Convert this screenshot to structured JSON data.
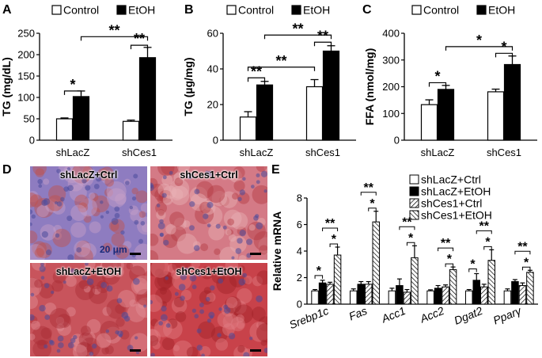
{
  "figure": {
    "letters": [
      "A",
      "B",
      "C",
      "D",
      "E"
    ]
  },
  "chart_data": [
    {
      "panel": "A",
      "type": "bar",
      "categories": [
        "shLacZ",
        "shCes1"
      ],
      "series": [
        {
          "name": "Control",
          "values": [
            50,
            44
          ],
          "errors": [
            2,
            3
          ]
        },
        {
          "name": "EtOH",
          "values": [
            102,
            193
          ],
          "errors": [
            13,
            24
          ]
        }
      ],
      "ylabel": "TG (mg/dL)",
      "ylim": [
        0,
        250
      ],
      "yticks": [
        0,
        50,
        100,
        150,
        200,
        250
      ],
      "legend": "top",
      "significance": [
        {
          "label": "*",
          "between": "shLacZ Control vs shLacZ EtOH"
        },
        {
          "label": "**",
          "between": "shCes1 Control vs shCes1 EtOH"
        },
        {
          "label": "**",
          "between": "shLacZ EtOH vs shCes1 EtOH"
        }
      ]
    },
    {
      "panel": "B",
      "type": "bar",
      "categories": [
        "shLacZ",
        "shCes1"
      ],
      "series": [
        {
          "name": "Control",
          "values": [
            13,
            30
          ],
          "errors": [
            3,
            4
          ]
        },
        {
          "name": "EtOH",
          "values": [
            31,
            50
          ],
          "errors": [
            2,
            3
          ]
        }
      ],
      "ylabel": "TG (µg/mg)",
      "ylim": [
        0,
        60
      ],
      "yticks": [
        0,
        20,
        40,
        60
      ],
      "legend": "top",
      "significance": [
        {
          "label": "**",
          "between": "shLacZ Control vs shLacZ EtOH"
        },
        {
          "label": "**",
          "between": "shCes1 Control vs shCes1 EtOH"
        },
        {
          "label": "**",
          "between": "shLacZ Control vs shCes1 Control"
        },
        {
          "label": "**",
          "between": "shLacZ EtOH vs shCes1 EtOH"
        }
      ]
    },
    {
      "panel": "C",
      "type": "bar",
      "categories": [
        "shLacZ",
        "shCes1"
      ],
      "series": [
        {
          "name": "Control",
          "values": [
            133,
            181
          ],
          "errors": [
            18,
            10
          ]
        },
        {
          "name": "EtOH",
          "values": [
            190,
            283
          ],
          "errors": [
            15,
            32
          ]
        }
      ],
      "ylabel": "FFA (nmol/mg)",
      "ylim": [
        0,
        400
      ],
      "yticks": [
        0,
        100,
        200,
        300,
        400
      ],
      "legend": "top",
      "significance": [
        {
          "label": "*",
          "between": "shLacZ Control vs shLacZ EtOH"
        },
        {
          "label": "*",
          "between": "shCes1 Control vs shCes1 EtOH"
        },
        {
          "label": "*",
          "between": "shLacZ EtOH vs shCes1 EtOH"
        }
      ]
    },
    {
      "panel": "E",
      "type": "bar",
      "categories": [
        "Srebp1c",
        "Fas",
        "Acc1",
        "Acc2",
        "Dgat2",
        "Pparγ"
      ],
      "series": [
        {
          "name": "shLacZ+Ctrl",
          "values": [
            1.0,
            1.0,
            1.0,
            1.0,
            1.0,
            1.0
          ],
          "errors": [
            0.1,
            0.15,
            0.2,
            0.08,
            0.1,
            0.15
          ]
        },
        {
          "name": "shLacZ+EtOH",
          "values": [
            1.6,
            1.5,
            1.4,
            1.2,
            1.8,
            1.7
          ],
          "errors": [
            0.2,
            0.2,
            0.5,
            0.2,
            0.5,
            0.15
          ]
        },
        {
          "name": "shCes1+Ctrl",
          "values": [
            1.5,
            1.5,
            0.9,
            1.3,
            1.3,
            1.4
          ],
          "errors": [
            0.15,
            0.2,
            0.2,
            0.15,
            0.2,
            0.2
          ]
        },
        {
          "name": "shCes1+EtOH",
          "values": [
            3.7,
            6.2,
            3.5,
            2.6,
            3.3,
            2.4
          ],
          "errors": [
            0.6,
            0.8,
            0.9,
            0.2,
            0.8,
            0.15
          ]
        }
      ],
      "ylabel": "Relative mRNA",
      "ylim": [
        0,
        8
      ],
      "yticks": [
        0,
        2,
        4,
        6,
        8
      ],
      "legend": "top-right",
      "significance": [
        {
          "category": "Srebp1c",
          "labels": [
            "*",
            "**",
            "*"
          ]
        },
        {
          "category": "Fas",
          "labels": [
            "**",
            "*"
          ]
        },
        {
          "category": "Acc1",
          "labels": [
            "**",
            "*"
          ]
        },
        {
          "category": "Acc2",
          "labels": [
            "**",
            "*"
          ]
        },
        {
          "category": "Dgat2",
          "labels": [
            "*",
            "**",
            "*"
          ]
        },
        {
          "category": "Pparγ",
          "labels": [
            "**",
            "*"
          ]
        }
      ]
    }
  ],
  "histology": {
    "tiles": [
      {
        "label": "shLacZ+Ctrl",
        "tone": "#8e7cc0",
        "tone2": "#c7a0c8",
        "spot": "#c0504a"
      },
      {
        "label": "shCes1+Ctrl",
        "tone": "#d47a86",
        "tone2": "#e9b1b6",
        "spot": "#b33a43"
      },
      {
        "label": "shLacZ+EtOH",
        "tone": "#c8545c",
        "tone2": "#e39098",
        "spot": "#a92d35"
      },
      {
        "label": "shCes1+EtOH",
        "tone": "#c8424a",
        "tone2": "#e17d83",
        "spot": "#9f2129"
      }
    ],
    "scale_label": "20 μm"
  }
}
